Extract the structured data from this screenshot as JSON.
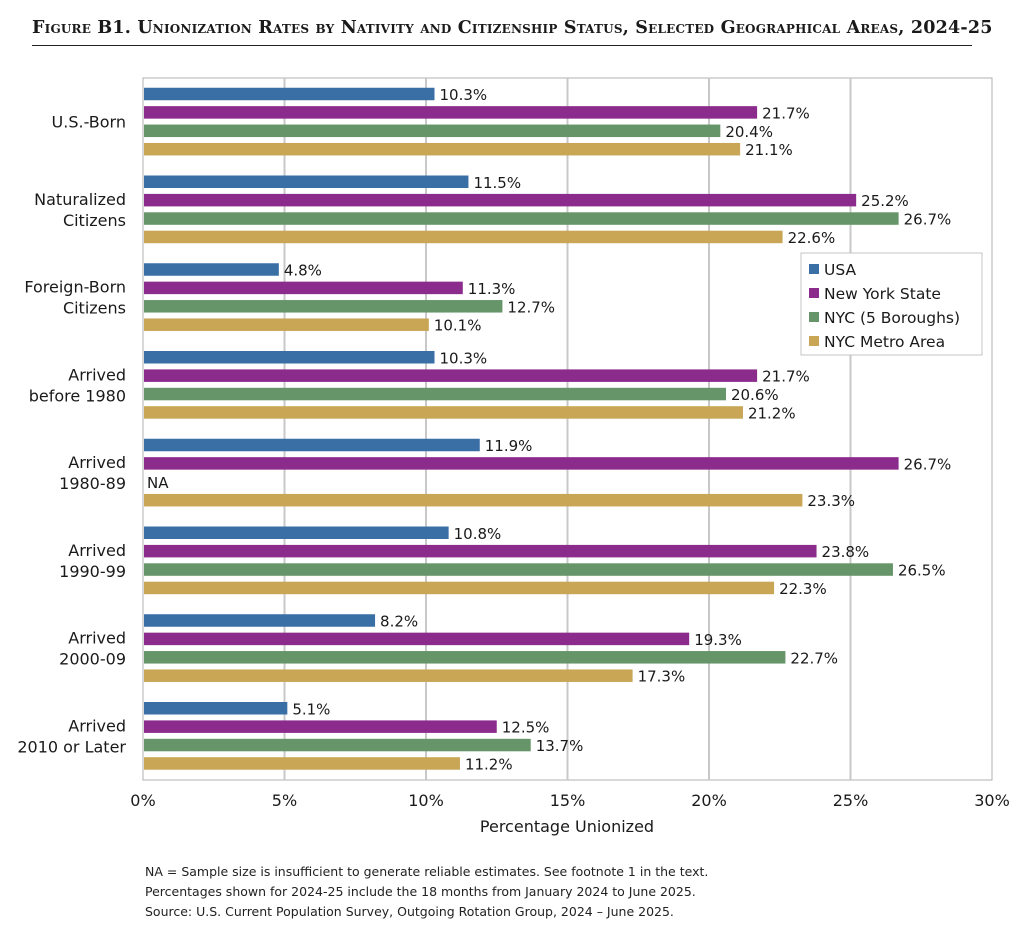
{
  "title": "Figure B1. Unionization Rates by Nativity and Citizenship Status, Selected Geographical Areas, 2024-25",
  "colors": {
    "usa": "#3a6fa6",
    "nys": "#8b2c8c",
    "nyc": "#66956a",
    "metro": "#c8a656",
    "grid": "#c8c8c8"
  },
  "chart_data": {
    "type": "bar",
    "orientation": "horizontal",
    "categories": [
      [
        "U.S.-Born"
      ],
      [
        "Naturalized",
        "Citizens"
      ],
      [
        "Foreign-Born",
        "Citizens"
      ],
      [
        "Arrived",
        "before 1980"
      ],
      [
        "Arrived",
        "1980-89"
      ],
      [
        "Arrived",
        "1990-99"
      ],
      [
        "Arrived",
        "2000-09"
      ],
      [
        "Arrived",
        "2010 or Later"
      ]
    ],
    "series": [
      {
        "name": "USA",
        "color": "#3a6fa6",
        "values": [
          10.3,
          11.5,
          4.8,
          10.3,
          11.9,
          10.8,
          8.2,
          5.1
        ],
        "labels": [
          "10.3%",
          "11.5%",
          "4.8%",
          "10.3%",
          "11.9%",
          "10.8%",
          "8.2%",
          "5.1%"
        ]
      },
      {
        "name": "New York State",
        "color": "#8b2c8c",
        "values": [
          21.7,
          25.2,
          11.3,
          21.7,
          26.7,
          23.8,
          19.3,
          12.5
        ],
        "labels": [
          "21.7%",
          "25.2%",
          "11.3%",
          "21.7%",
          "26.7%",
          "23.8%",
          "19.3%",
          "12.5%"
        ]
      },
      {
        "name": "NYC (5 Boroughs)",
        "color": "#66956a",
        "values": [
          20.4,
          26.7,
          12.7,
          20.6,
          null,
          26.5,
          22.7,
          13.7
        ],
        "labels": [
          "20.4%",
          "26.7%",
          "12.7%",
          "20.6%",
          "NA",
          "26.5%",
          "22.7%",
          "13.7%"
        ]
      },
      {
        "name": "NYC Metro Area",
        "color": "#c8a656",
        "values": [
          21.1,
          22.6,
          10.1,
          21.2,
          23.3,
          22.3,
          17.3,
          11.2
        ],
        "labels": [
          "21.1%",
          "22.6%",
          "10.1%",
          "21.2%",
          "23.3%",
          "22.3%",
          "17.3%",
          "11.2%"
        ]
      }
    ],
    "xlim": [
      0,
      30
    ],
    "xticks": [
      0,
      5,
      10,
      15,
      20,
      25,
      30
    ],
    "xtick_labels": [
      "0%",
      "5%",
      "10%",
      "15%",
      "20%",
      "25%",
      "30%"
    ],
    "xlabel": "Percentage Unionized",
    "grid": "vertical",
    "legend": "right"
  },
  "notes": [
    "NA = Sample size is insufficient to generate reliable estimates. See footnote 1 in the text.",
    "Percentages shown for 2024-25 include the 18 months from January 2024 to June 2025.",
    "Source: U.S. Current Population Survey, Outgoing Rotation Group, 2024 – June 2025."
  ]
}
